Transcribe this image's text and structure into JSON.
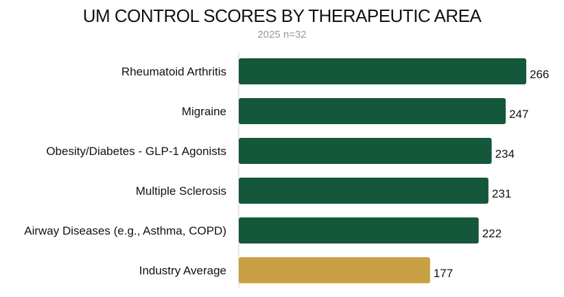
{
  "chart_data": {
    "type": "bar",
    "orientation": "horizontal",
    "title": "UM CONTROL SCORES BY THERAPEUTIC AREA",
    "subtitle": "2025 n=32",
    "categories": [
      "Rheumatoid Arthritis",
      "Migraine",
      "Obesity/Diabetes - GLP-1 Agonists",
      "Multiple Sclerosis",
      "Airway Diseases (e.g., Asthma, COPD)",
      "Industry Average"
    ],
    "values": [
      266,
      247,
      234,
      231,
      222,
      177
    ],
    "colors": [
      "#14573a",
      "#14573a",
      "#14573a",
      "#14573a",
      "#14573a",
      "#c9a043"
    ],
    "xlim": [
      0,
      266
    ],
    "grid": false,
    "legend": "none"
  }
}
